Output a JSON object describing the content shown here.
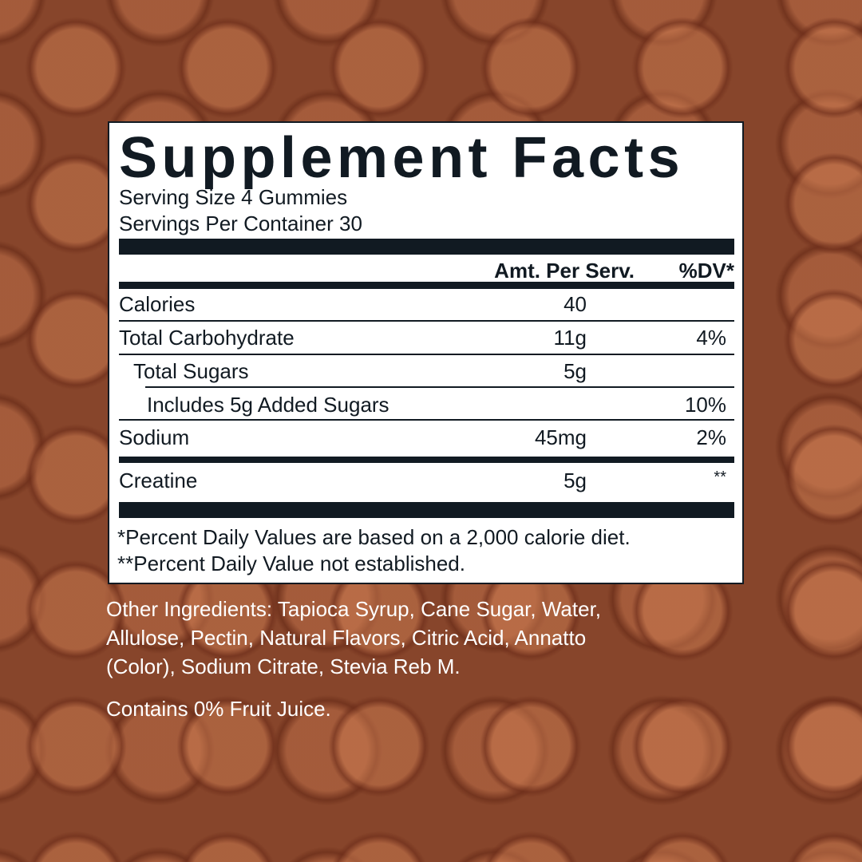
{
  "title": "Supplement Facts",
  "serving_size": "Serving Size 4 Gummies",
  "servings_per_container": "Servings Per Container 30",
  "header": {
    "amount": "Amt. Per Serv.",
    "dv": "%DV*"
  },
  "rows": [
    {
      "name": "Calories",
      "amount": "40",
      "dv": ""
    },
    {
      "name": "Total Carbohydrate",
      "amount": "11g",
      "dv": "4%"
    },
    {
      "name": "Total Sugars",
      "amount": "5g",
      "dv": ""
    },
    {
      "name": "Includes 5g Added Sugars",
      "amount": "",
      "dv": "10%"
    },
    {
      "name": "Sodium",
      "amount": "45mg",
      "dv": "2%"
    },
    {
      "name": "Creatine",
      "amount": "5g",
      "dv": "**"
    }
  ],
  "footnotes": [
    "*Percent Daily Values are based on a 2,000 calorie diet.",
    "**Percent Daily Value not established."
  ],
  "other_ingredients": [
    "Other Ingredients: Tapioca Syrup, Cane Sugar, Water,",
    "Allulose, Pectin, Natural Flavors, Citric Acid, Annatto",
    "(Color), Sodium Citrate, Stevia Reb M."
  ],
  "juice_note": "Contains 0% Fruit Juice.",
  "colors": {
    "ink": "#111a22",
    "background": "#9a5234"
  }
}
